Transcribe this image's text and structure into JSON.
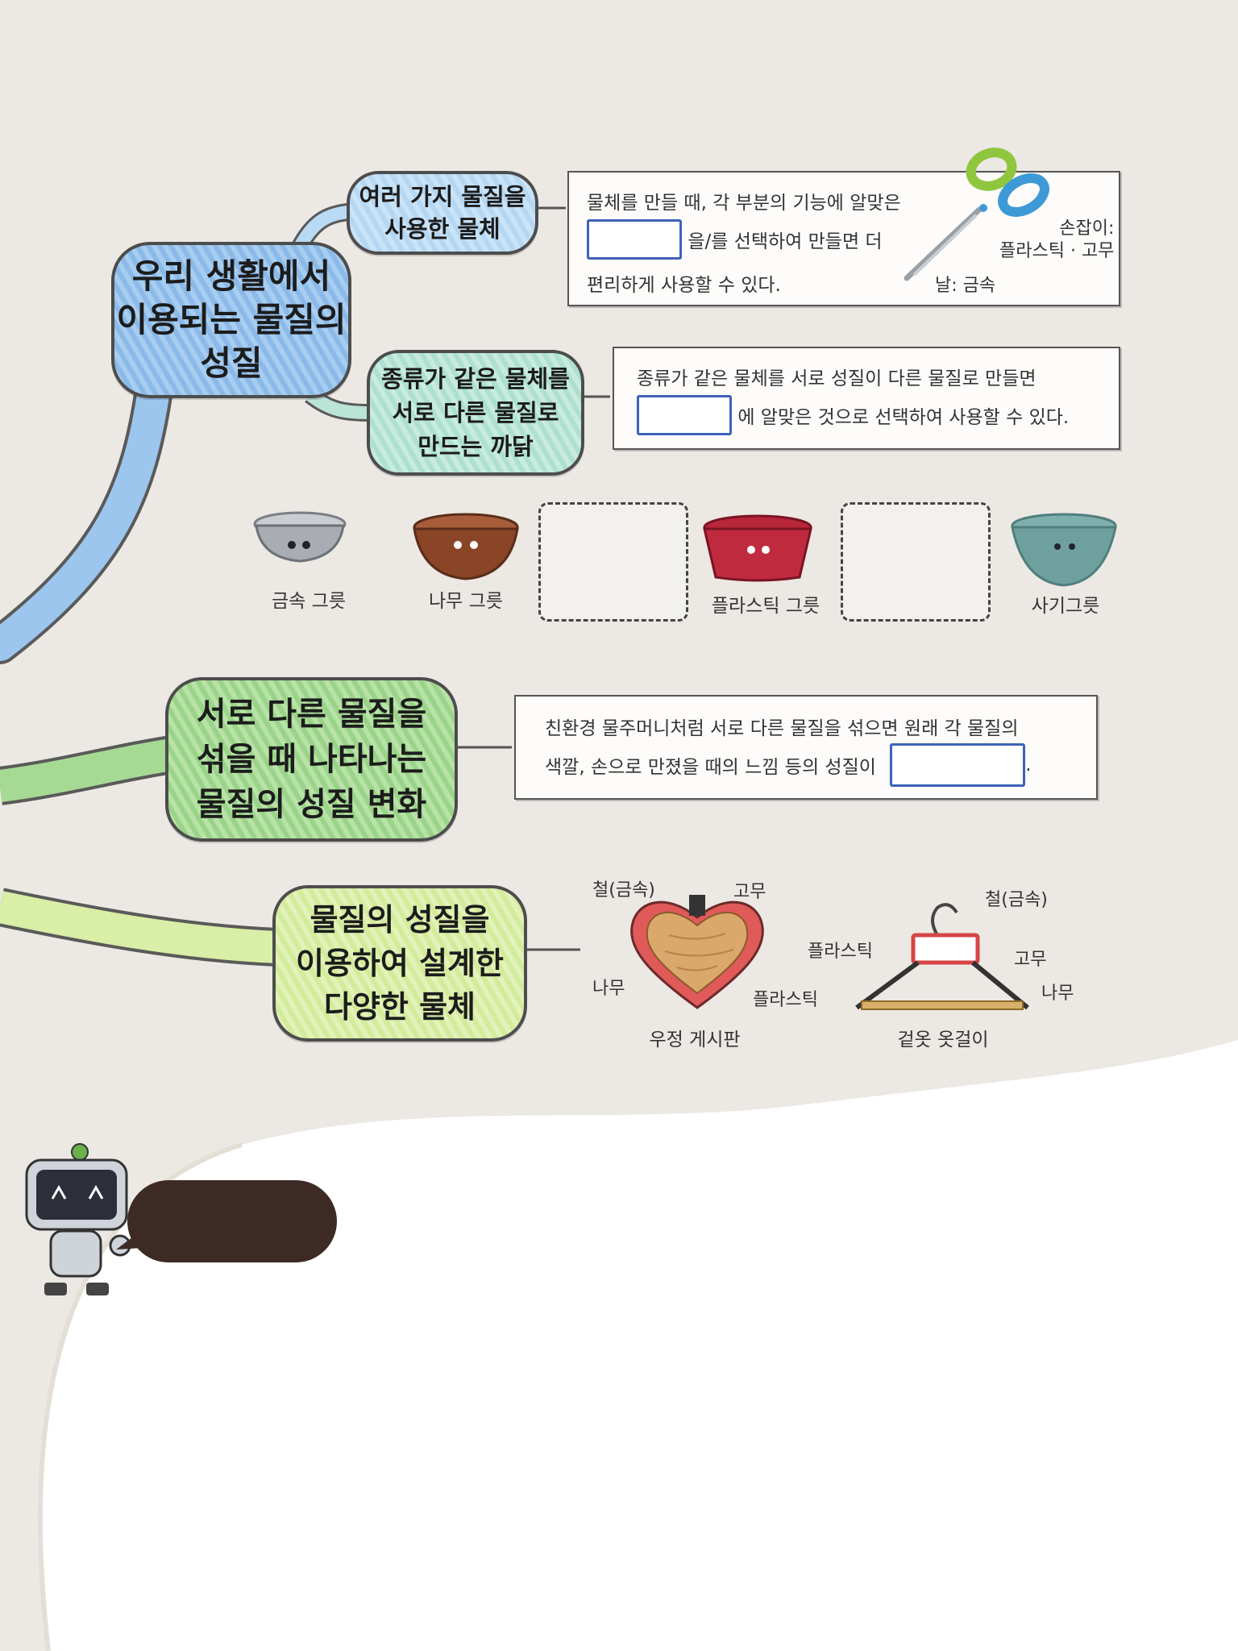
{
  "mindmap": {
    "root": "우리 생활에서\n이용되는 물질의\n성질",
    "branch1": {
      "title": "여러 가지 물질을\n사용한 물체",
      "text_line1": "물체를 만들 때, 각 부분의 기능에 알맞은",
      "text_line2_after_blank": "을/를 선택하여 만들면 더",
      "text_line3": "편리하게 사용할 수 있다.",
      "label_handle": "손잡이:\n플라스틱 · 고무",
      "label_blade": "날: 금속"
    },
    "branch2": {
      "title": "종류가 같은 물체를\n서로 다른 물질로\n만드는 까닭",
      "text_line1": "종류가 같은 물체를 서로 성질이 다른 물질로 만들면",
      "text_line2_after_blank": "에 알맞은 것으로 선택하여 사용할 수 있다.",
      "bowls": [
        "금속 그릇",
        "나무 그릇",
        "플라스틱 그릇",
        "사기그릇"
      ]
    },
    "branch3": {
      "title": "서로 다른 물질을\n섞을 때 나타나는\n물질의 성질 변화",
      "text_line1": "친환경 물주머니처럼 서로 다른 물질을 섞으면 원래 각 물질의",
      "text_line2_before_blank": "색깔, 손으로 만졌을 때의 느낌 등의 성질이",
      "text_line2_after_blank": "."
    },
    "branch4": {
      "title": "물질의 성질을\n이용하여 설계한\n다양한 물체",
      "board": {
        "caption": "우정 게시판",
        "labels": [
          "철(금속)",
          "고무",
          "나무",
          "플라스틱"
        ]
      },
      "hanger": {
        "caption": "겉옷 옷걸이",
        "labels": [
          "철(금속)",
          "플라스틱",
          "고무",
          "나무"
        ]
      }
    }
  },
  "colors": {
    "background": "#ece8e3",
    "blank_border": "#3d62b8",
    "bubble": "#3e2a25"
  }
}
